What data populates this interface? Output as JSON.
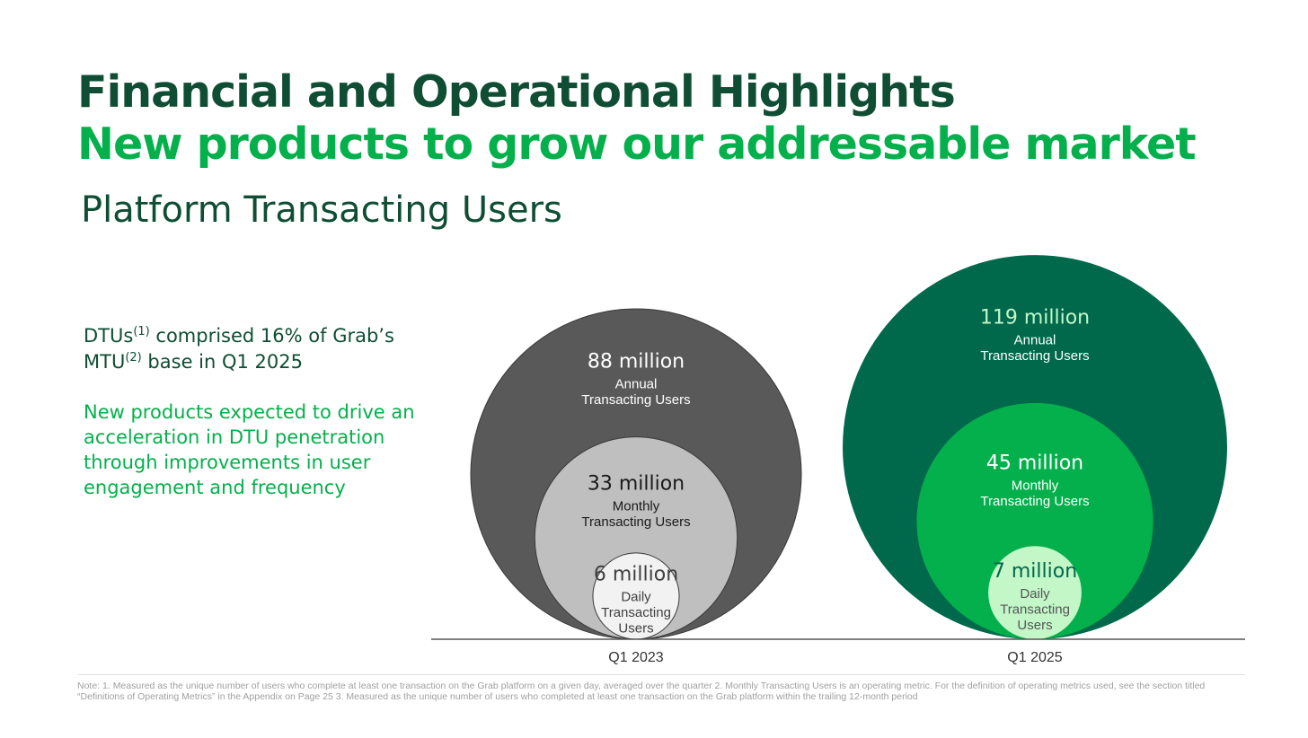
{
  "header": {
    "title": "Financial and Operational Highlights",
    "subtitle": "New products to grow our addressable market",
    "section_title": "Platform Transacting Users"
  },
  "commentary": {
    "stat_part1": "DTUs",
    "stat_sup1": "(1)",
    "stat_part2": " comprised 16% of Grab’s",
    "stat_part3": "MTU",
    "stat_sup2": "(2)",
    "stat_part4": " base in Q1 2025",
    "growth_lines": [
      "New products expected to drive an",
      "acceleration in DTU penetration",
      "through improvements in user",
      "engagement and frequency"
    ]
  },
  "chart_data": {
    "type": "nested-bubble",
    "categories": [
      "Q1 2023",
      "Q1 2025"
    ],
    "series": [
      {
        "name": "Annual Transacting Users",
        "values": [
          88,
          119
        ],
        "value_labels": [
          "88 million",
          "119 million"
        ],
        "label_lines": [
          "Annual",
          "Transacting Users"
        ]
      },
      {
        "name": "Monthly Transacting Users",
        "values": [
          33,
          45
        ],
        "value_labels": [
          "33 million",
          "45 million"
        ],
        "label_lines": [
          "Monthly",
          "Transacting Users"
        ]
      },
      {
        "name": "Daily Transacting Users",
        "values": [
          6,
          7
        ],
        "value_labels": [
          "6 million",
          "7 million"
        ],
        "label_lines": [
          "Daily",
          "Transacting",
          "Users"
        ]
      }
    ],
    "unit": "million",
    "colors": {
      "Q1 2023": [
        "#595959",
        "#bfbfbf",
        "#f2f2f2"
      ],
      "Q1 2025": [
        "#00694b",
        "#04b04b",
        "#c3f7c8"
      ]
    },
    "value_text_colors": {
      "Q1 2023": [
        "#ffffff",
        "#1a1a1a",
        "#404040"
      ],
      "Q1 2025": [
        "#c3f7c8",
        "#ffffff",
        "#00694b"
      ]
    },
    "label_text_colors": {
      "Q1 2023": [
        "#ffffff",
        "#1a1a1a",
        "#404040"
      ],
      "Q1 2025": [
        "#ffffff",
        "#ffffff",
        "#555555"
      ]
    }
  },
  "footnote": "Note: 1. Measured as the unique number of users who complete at least one transaction on the Grab platform on a given day, averaged over the quarter 2. Monthly Transacting Users is an operating metric. For the definition of operating metrics used, see the section titled “Definitions of Operating Metrics” in the Appendix on Page 25 3. Measured as the unique number of users who completed at least one transaction on the Grab platform within the trailing 12-month period"
}
